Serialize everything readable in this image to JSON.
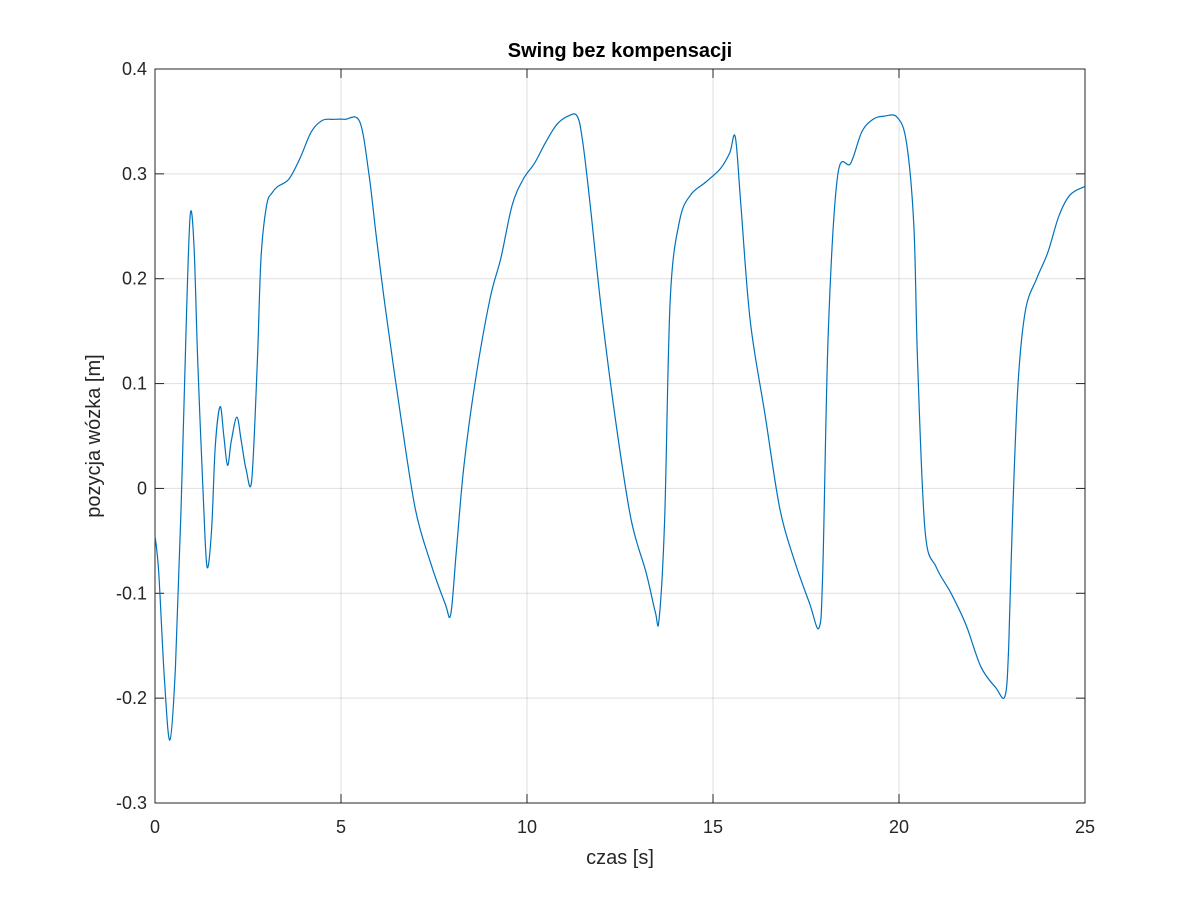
{
  "chart_data": {
    "type": "line",
    "title": "Swing bez kompensacji",
    "xlabel": "czas [s]",
    "ylabel": "pozycja wózka [m]",
    "xlim": [
      0,
      25
    ],
    "ylim": [
      -0.3,
      0.4
    ],
    "grid": true,
    "x_ticks": [
      0,
      5,
      10,
      15,
      20,
      25
    ],
    "x_tick_labels": [
      "0",
      "5",
      "10",
      "15",
      "20",
      "25"
    ],
    "y_ticks": [
      -0.3,
      -0.2,
      -0.1,
      0,
      0.1,
      0.2,
      0.3,
      0.4
    ],
    "y_tick_labels": [
      "-0.3",
      "-0.2",
      "-0.1",
      "0",
      "0.1",
      "0.2",
      "0.3",
      "0.4"
    ],
    "line_color": "#0072BD",
    "series": [
      {
        "x": [
          0,
          0.1,
          0.25,
          0.4,
          0.55,
          0.7,
          0.85,
          0.95,
          1.05,
          1.15,
          1.3,
          1.4,
          1.52,
          1.62,
          1.75,
          1.85,
          1.95,
          2.05,
          2.2,
          2.32,
          2.45,
          2.6,
          2.75,
          2.85,
          3.0,
          3.15,
          3.3,
          3.6,
          3.9,
          4.2,
          4.5,
          4.8,
          5.1,
          5.5,
          5.75,
          5.95,
          6.2,
          6.6,
          7.0,
          7.4,
          7.8,
          7.95,
          8.1,
          8.3,
          8.6,
          9.0,
          9.3,
          9.6,
          9.9,
          10.2,
          10.5,
          10.8,
          11.1,
          11.35,
          11.5,
          11.7,
          12.0,
          12.4,
          12.8,
          13.2,
          13.45,
          13.55,
          13.7,
          13.85,
          14.1,
          14.4,
          14.8,
          15.2,
          15.45,
          15.6,
          15.75,
          16.0,
          16.4,
          16.8,
          17.2,
          17.6,
          17.85,
          17.95,
          18.1,
          18.35,
          18.7,
          19.0,
          19.3,
          19.6,
          19.95,
          20.2,
          20.4,
          20.5,
          20.7,
          21.0,
          21.4,
          21.8,
          22.2,
          22.6,
          22.85,
          22.95,
          23.05,
          23.2,
          23.4,
          23.7,
          24.0,
          24.3,
          24.6,
          25.0
        ],
        "y": [
          -0.045,
          -0.08,
          -0.18,
          -0.24,
          -0.17,
          -0.02,
          0.17,
          0.262,
          0.23,
          0.12,
          -0.01,
          -0.075,
          -0.04,
          0.04,
          0.078,
          0.05,
          0.022,
          0.045,
          0.068,
          0.045,
          0.018,
          0.008,
          0.12,
          0.22,
          0.27,
          0.282,
          0.288,
          0.295,
          0.315,
          0.34,
          0.351,
          0.352,
          0.352,
          0.35,
          0.3,
          0.24,
          0.17,
          0.07,
          -0.02,
          -0.07,
          -0.11,
          -0.12,
          -0.06,
          0.02,
          0.1,
          0.18,
          0.22,
          0.27,
          0.295,
          0.31,
          0.33,
          0.347,
          0.355,
          0.355,
          0.33,
          0.27,
          0.17,
          0.06,
          -0.03,
          -0.08,
          -0.118,
          -0.125,
          -0.03,
          0.18,
          0.255,
          0.28,
          0.292,
          0.305,
          0.32,
          0.335,
          0.27,
          0.16,
          0.07,
          -0.02,
          -0.07,
          -0.11,
          -0.133,
          -0.08,
          0.15,
          0.298,
          0.31,
          0.34,
          0.352,
          0.355,
          0.354,
          0.33,
          0.25,
          0.12,
          -0.04,
          -0.075,
          -0.1,
          -0.13,
          -0.17,
          -0.19,
          -0.198,
          -0.15,
          -0.03,
          0.1,
          0.17,
          0.2,
          0.225,
          0.26,
          0.28,
          0.288
        ]
      }
    ]
  }
}
